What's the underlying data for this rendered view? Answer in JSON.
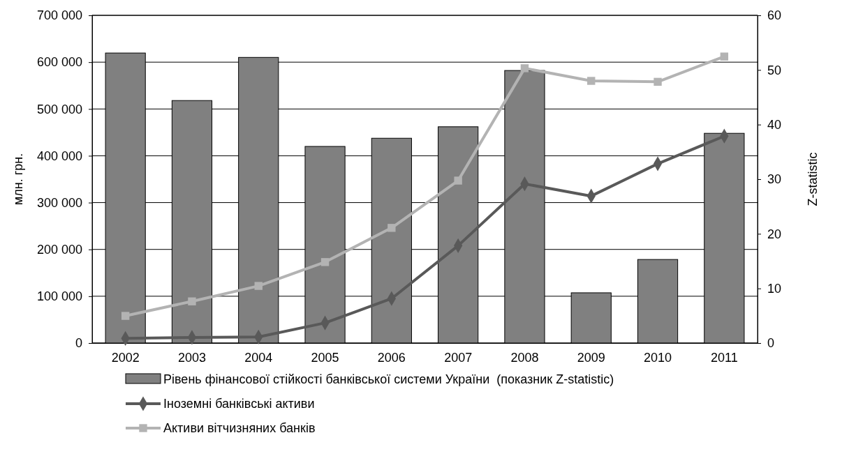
{
  "chart_data": {
    "type": "bar",
    "categories": [
      "2002",
      "2003",
      "2004",
      "2005",
      "2006",
      "2007",
      "2008",
      "2009",
      "2010",
      "2011"
    ],
    "ylabel": "млн. грн.",
    "y2label": "Z-statistic",
    "ylim": [
      0,
      700000
    ],
    "yticks": [
      {
        "value": 0,
        "label": "0"
      },
      {
        "value": 100000,
        "label": "100 000"
      },
      {
        "value": 200000,
        "label": "200 000"
      },
      {
        "value": 300000,
        "label": "300 000"
      },
      {
        "value": 400000,
        "label": "400 000"
      },
      {
        "value": 500000,
        "label": "500 000"
      },
      {
        "value": 600000,
        "label": "600 000"
      },
      {
        "value": 700000,
        "label": "700 000"
      }
    ],
    "y2lim": [
      0,
      60
    ],
    "y2ticks": [
      0,
      10,
      20,
      30,
      40,
      50,
      60
    ],
    "grid": "y",
    "legend": "bottom",
    "series": [
      {
        "axis": "y2",
        "name": "Рівень фінансової стійкості банківської системи України  (показник Z-statistic)",
        "color": "#808080",
        "values": [
          53.1,
          44.4,
          52.3,
          36.0,
          37.5,
          39.6,
          49.9,
          9.2,
          15.3,
          38.4
        ]
      },
      {
        "type": "line",
        "axis": "y",
        "name": "Іноземні банківські активи",
        "color": "#595959",
        "marker": "diamond",
        "values": [
          10000,
          12000,
          13000,
          43000,
          95000,
          208000,
          340000,
          314000,
          383000,
          442000
        ]
      },
      {
        "type": "line",
        "axis": "y",
        "name": "Активи вітчизняних банків",
        "color": "#b3b3b3",
        "marker": "square",
        "values": [
          58000,
          89000,
          122000,
          173000,
          246000,
          347000,
          587000,
          560000,
          558000,
          612000
        ]
      }
    ]
  }
}
